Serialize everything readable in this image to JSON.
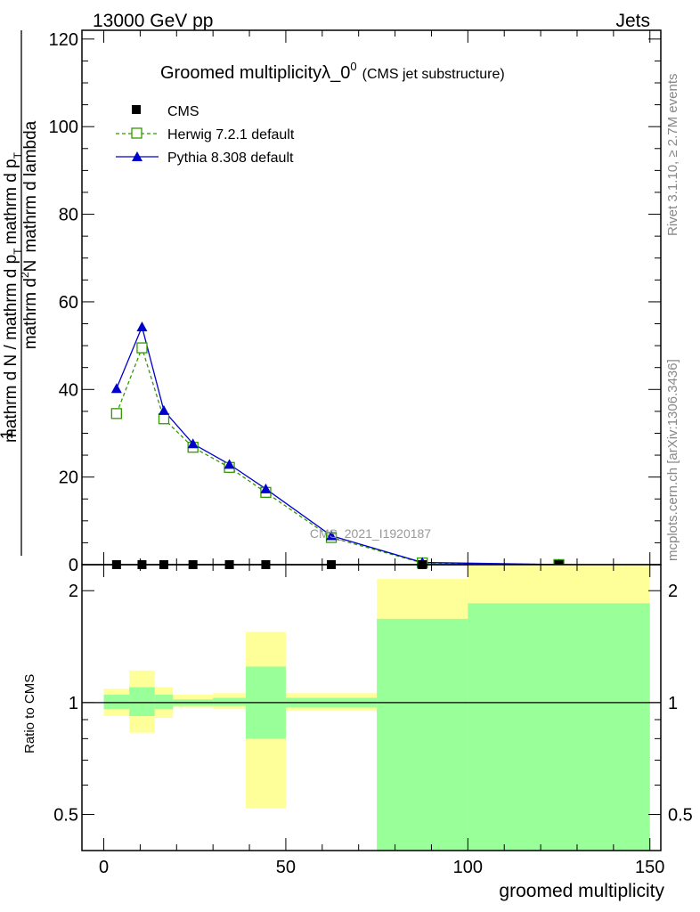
{
  "header": {
    "left": "13000 GeV pp",
    "right": "Jets"
  },
  "side_text": {
    "rivet": "Rivet 3.1.10, ≥ 2.7M events",
    "mcplots": "mcplots.cern.ch [arXiv:1306.3436]"
  },
  "colors": {
    "cms": "#000000",
    "herwig": "#339900",
    "pythia": "#0000cc",
    "band_outer": "#ffff99",
    "band_inner": "#99ff99"
  },
  "chart_data": [
    {
      "type": "line",
      "title": "Groomed multiplicityλ_0",
      "title_superscript": "0",
      "title_suffix": "(CMS jet substructure)",
      "ylabel": {
        "numerator": "mathrm d",
        "numerator_superscript": "2",
        "numerator_tail": "N",
        "denominator": "mathrm d N / mathrm d p",
        "denominator_subscript": "T",
        "denominator_mid": "mathrm d p",
        "denominator_mid_subscript": "T",
        "denominator_tail": "mathrm d lambda",
        "prefix": "1"
      },
      "watermark": "CMS_2021_I1920187",
      "xlim": [
        -6,
        153
      ],
      "ylim": [
        0,
        122
      ],
      "yticks": [
        "0",
        "20",
        "40",
        "60",
        "80",
        "100",
        "120"
      ],
      "legend_position": "top-left",
      "series": [
        {
          "name": "CMS",
          "marker": "square",
          "x": [
            3.5,
            10.5,
            16.5,
            24.5,
            34.5,
            44.5,
            62.5,
            87.5,
            125
          ],
          "y": [
            0,
            0,
            0,
            0,
            0,
            0,
            0,
            0,
            0
          ]
        },
        {
          "name": "Herwig 7.2.1 default",
          "marker": "open-square",
          "line": "dashed",
          "x": [
            3.5,
            10.5,
            16.5,
            24.5,
            34.5,
            44.5,
            62.5,
            87.5,
            125
          ],
          "y": [
            34.5,
            49.5,
            33.3,
            26.8,
            22.2,
            16.5,
            6.2,
            0.4,
            0.02
          ]
        },
        {
          "name": "Pythia 8.308 default",
          "marker": "triangle",
          "line": "solid",
          "x": [
            3.5,
            10.5,
            16.5,
            24.5,
            34.5,
            44.5,
            62.5,
            87.5,
            125
          ],
          "y": [
            40.2,
            54.3,
            35.2,
            27.6,
            22.9,
            17.3,
            6.6,
            0.5,
            0.03
          ]
        }
      ]
    },
    {
      "type": "area",
      "ylabel": "Ratio to CMS",
      "xlabel": "groomed multiplicity",
      "xlim": [
        -6,
        153
      ],
      "ylim": [
        0.4,
        2.35
      ],
      "yscale": "log",
      "xticks": [
        "0",
        "50",
        "100",
        "150"
      ],
      "yticks": [
        "0.5",
        "1",
        "2"
      ],
      "reference_line": 1,
      "bins": [
        {
          "x0": 0,
          "x1": 7,
          "outer": [
            0.92,
            1.09
          ],
          "inner": [
            0.96,
            1.05
          ]
        },
        {
          "x0": 7,
          "x1": 14,
          "outer": [
            0.83,
            1.22
          ],
          "inner": [
            0.92,
            1.1
          ]
        },
        {
          "x0": 14,
          "x1": 19,
          "outer": [
            0.91,
            1.1
          ],
          "inner": [
            0.96,
            1.05
          ]
        },
        {
          "x0": 19,
          "x1": 30,
          "outer": [
            0.97,
            1.05
          ],
          "inner": [
            0.98,
            1.02
          ]
        },
        {
          "x0": 30,
          "x1": 39,
          "outer": [
            0.96,
            1.06
          ],
          "inner": [
            0.98,
            1.03
          ]
        },
        {
          "x0": 39,
          "x1": 50,
          "outer": [
            0.52,
            1.55
          ],
          "inner": [
            0.8,
            1.25
          ]
        },
        {
          "x0": 50,
          "x1": 75,
          "outer": [
            0.95,
            1.06
          ],
          "inner": [
            0.97,
            1.03
          ]
        },
        {
          "x0": 75,
          "x1": 100,
          "outer": [
            0.4,
            2.15
          ],
          "inner": [
            0.4,
            1.68
          ]
        },
        {
          "x0": 100,
          "x1": 150,
          "outer": [
            0.4,
            2.35
          ],
          "inner": [
            0.4,
            1.85
          ]
        }
      ]
    }
  ]
}
